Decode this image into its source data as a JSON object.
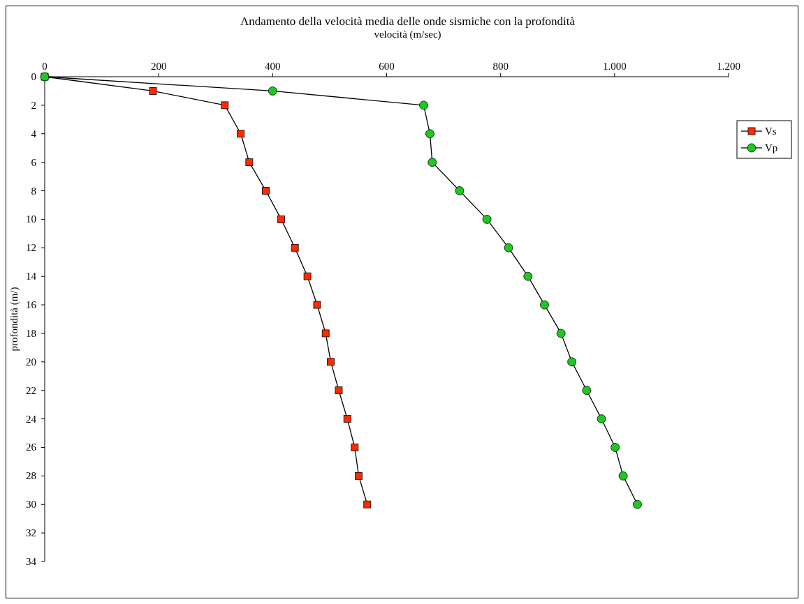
{
  "chart_data": {
    "type": "line",
    "title": "Andamento della velocità media delle onde sismiche con la profondità",
    "xlabel": "velocità (m/sec)",
    "ylabel": "profondità (m/)",
    "xlim": [
      0,
      1200
    ],
    "xticks": [
      0,
      200,
      400,
      600,
      800,
      {
        "value": 1000,
        "label": "1.000"
      },
      {
        "value": 1200,
        "label": "1.200"
      }
    ],
    "ylim": [
      34,
      0
    ],
    "yticks": [
      0,
      2,
      4,
      6,
      8,
      10,
      12,
      14,
      16,
      18,
      20,
      22,
      24,
      26,
      28,
      30,
      32,
      34
    ],
    "grid": false,
    "legend": "right",
    "line_style": "solid",
    "series": [
      {
        "name": "Vs",
        "color": "#ff2a00",
        "marker": "square",
        "x": [
          0,
          190,
          316,
          344,
          359,
          388,
          415,
          439,
          461,
          478,
          493,
          502,
          516,
          531,
          544,
          551,
          566
        ],
        "values": [
          0,
          1,
          2,
          4,
          6,
          8,
          10,
          12,
          14,
          16,
          18,
          20,
          22,
          24,
          26,
          28,
          30
        ]
      },
      {
        "name": "Vp",
        "color": "#1ec81e",
        "marker": "circle",
        "x": [
          0,
          400,
          665,
          676,
          680,
          728,
          776,
          814,
          848,
          877,
          906,
          925,
          951,
          977,
          1001,
          1015,
          1040
        ],
        "values": [
          0,
          1,
          2,
          4,
          6,
          8,
          10,
          12,
          14,
          16,
          18,
          20,
          22,
          24,
          26,
          28,
          30
        ]
      }
    ]
  }
}
